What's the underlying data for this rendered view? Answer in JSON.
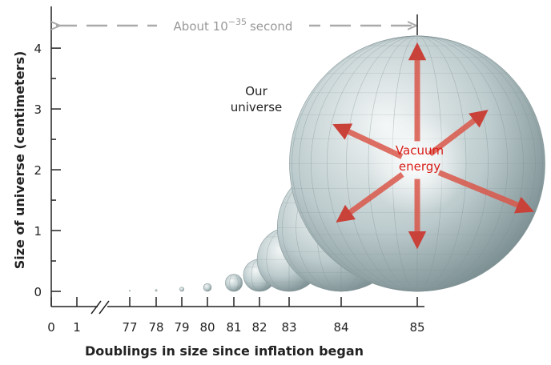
{
  "chart_data": {
    "type": "sphere",
    "x_label": "Doublings in size since inflation began",
    "y_label": "Size of universe (centimeters)",
    "categories": [
      "0",
      "1",
      "77",
      "78",
      "79",
      "80",
      "81",
      "82",
      "83",
      "84",
      "85"
    ],
    "values": [
      null,
      null,
      0.02,
      0.03,
      0.07,
      0.13,
      0.28,
      0.53,
      1.05,
      2.1,
      4.2
    ],
    "ylim": [
      -0.25,
      4.66
    ],
    "yticks": [
      0,
      1,
      2,
      3,
      4
    ],
    "color": "#b9c9cc",
    "time_annotation": {
      "text": "About 10",
      "exponent": "−35",
      "unit": "second"
    },
    "label_universe": [
      "Our",
      "universe"
    ],
    "label_energy": [
      "Vacuum",
      "energy"
    ]
  }
}
